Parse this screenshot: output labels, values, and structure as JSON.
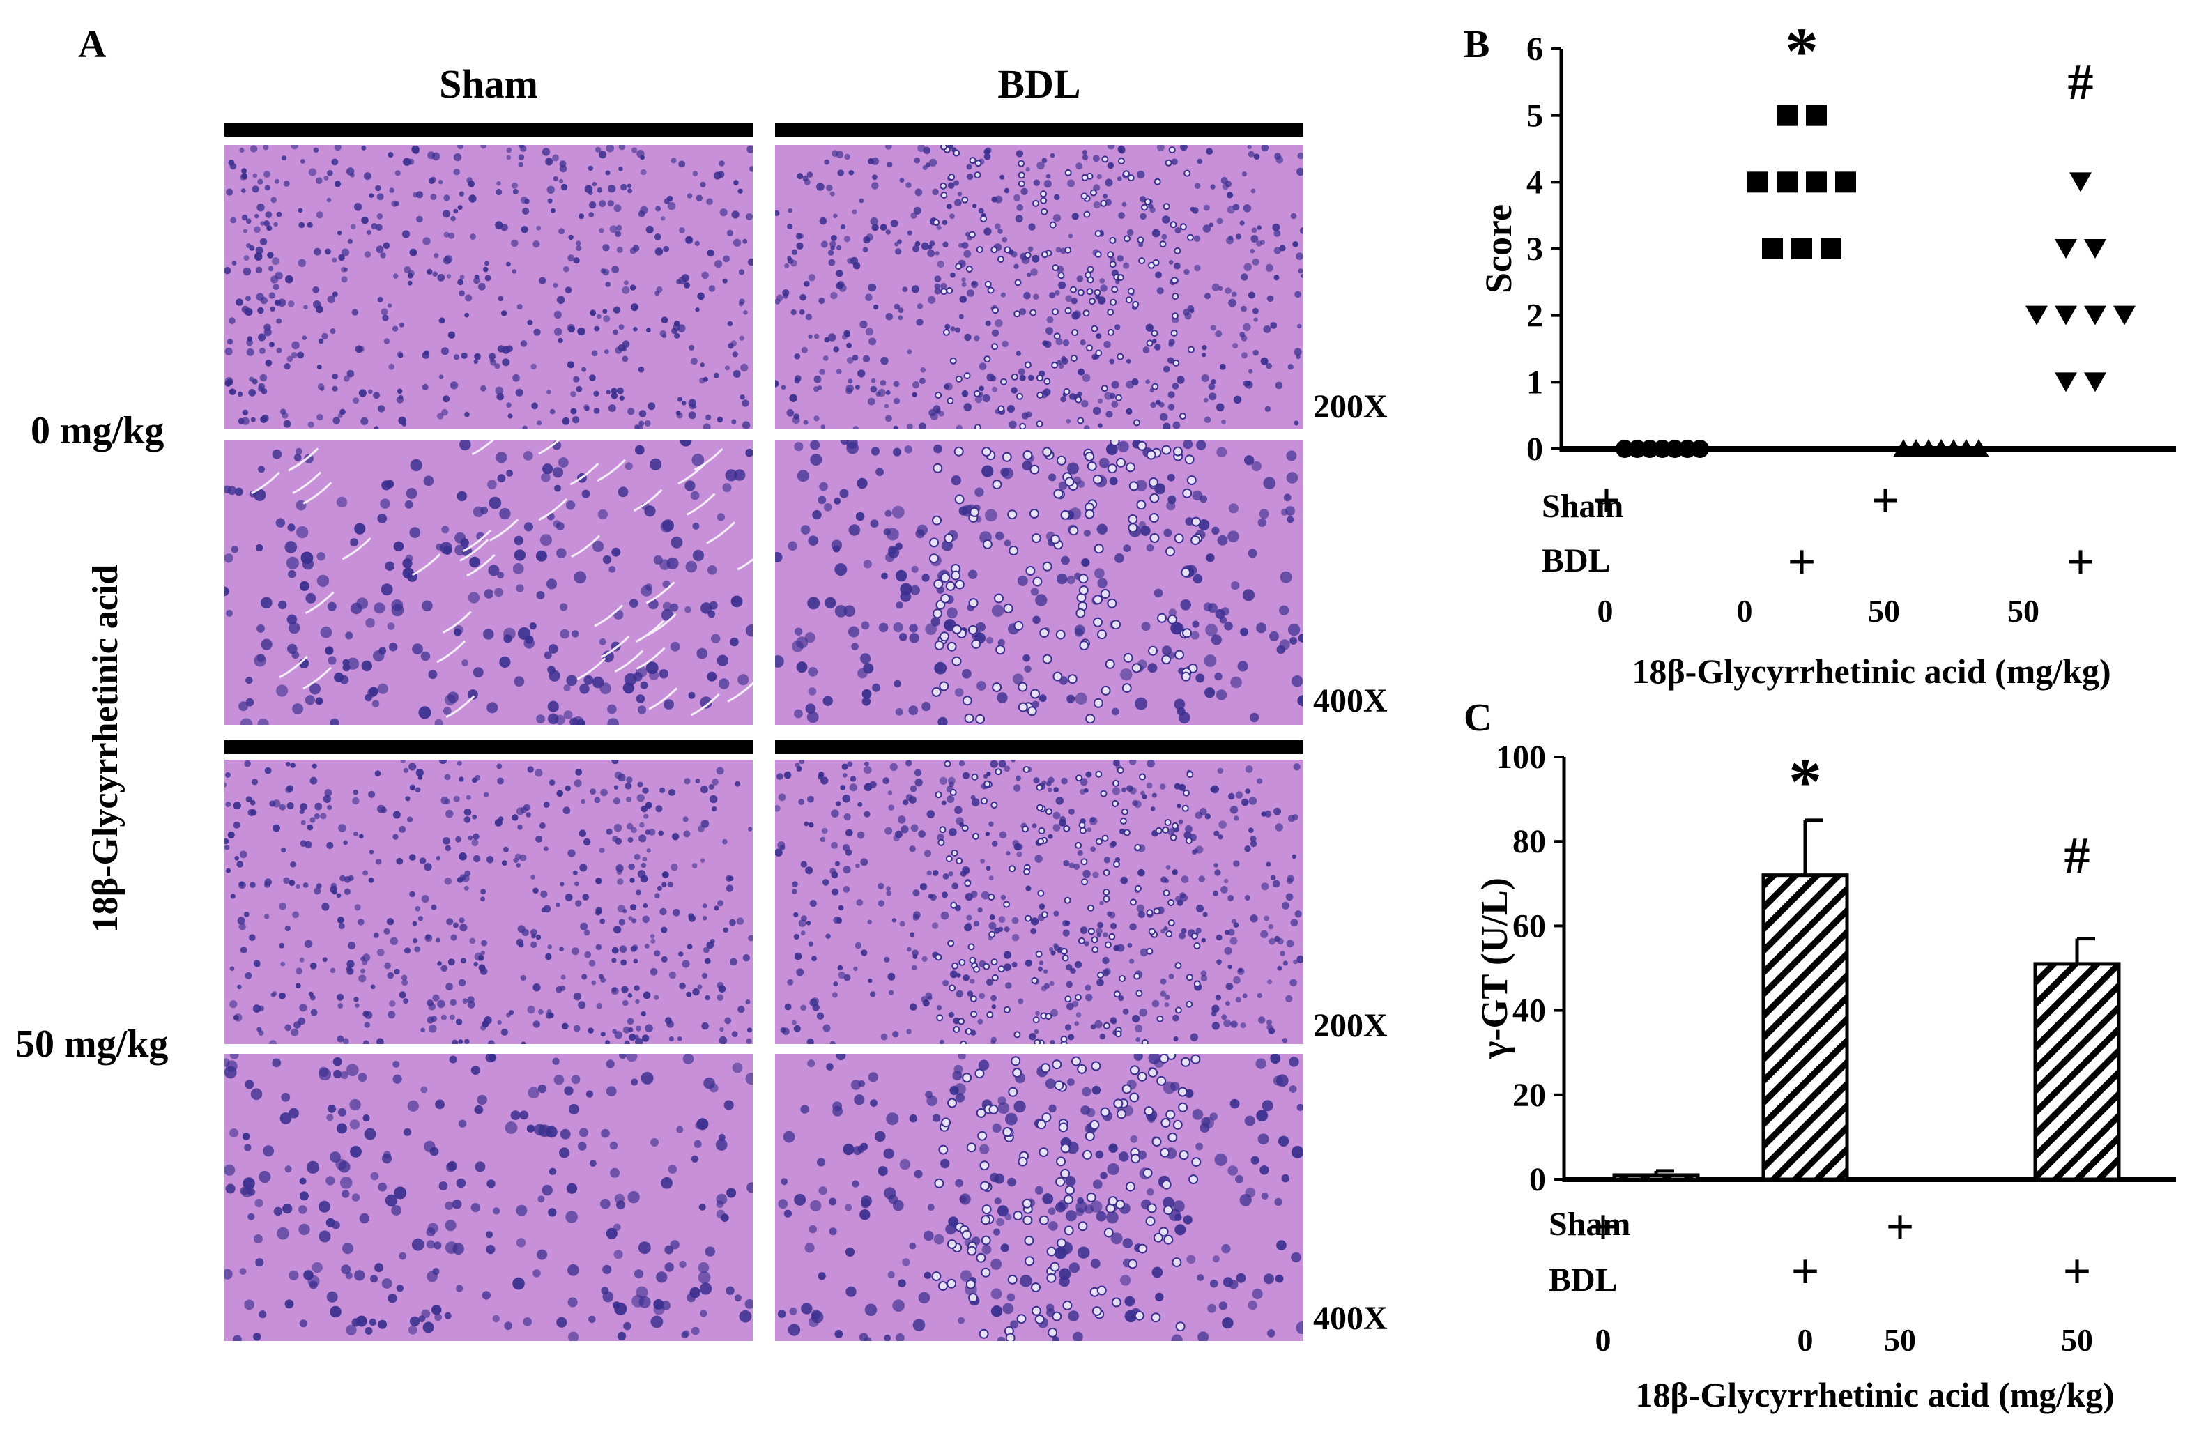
{
  "panel_a": {
    "letter": "A",
    "col_sham": "Sham",
    "col_bdl": "BDL",
    "dose_0": "0 mg/kg",
    "dose_50": "50 mg/kg",
    "compound": "18β-Glycyrrhetinic acid",
    "mag_200": "200X",
    "mag_400": "400X",
    "colors": {
      "tissue": "#b07cc6",
      "nuclei": "#3a2f8f",
      "background": "#c890d8"
    }
  },
  "chart_data": [
    {
      "panel": "B",
      "type": "scatter",
      "ylabel": "Score",
      "xlabel": "18β-Glycyrrhetinic acid (mg/kg)",
      "ylim": [
        0,
        6
      ],
      "yticks": [
        "0",
        "1",
        "2",
        "3",
        "4",
        "5",
        "6"
      ],
      "groups": [
        {
          "sham": "+",
          "bdl": "",
          "dose": "0",
          "marker": "circle",
          "values": [
            0,
            0,
            0,
            0,
            0,
            0,
            0
          ]
        },
        {
          "sham": "",
          "bdl": "+",
          "dose": "0",
          "marker": "square",
          "values": [
            5,
            5,
            4,
            4,
            4,
            4,
            3,
            3,
            3
          ]
        },
        {
          "sham": "+",
          "bdl": "",
          "dose": "50",
          "marker": "triangle-up",
          "values": [
            0,
            0,
            0,
            0,
            0,
            0,
            0
          ]
        },
        {
          "sham": "",
          "bdl": "+",
          "dose": "50",
          "marker": "triangle-down",
          "values": [
            4,
            3,
            3,
            2,
            2,
            2,
            2,
            1,
            1
          ]
        }
      ],
      "annotations": [
        "",
        "*",
        "",
        "#"
      ],
      "row_labels": {
        "sham": "Sham",
        "bdl": "BDL"
      },
      "grid": false
    },
    {
      "panel": "C",
      "type": "bar",
      "ylabel": "γ-GT (U/L)",
      "xlabel": "18β-Glycyrrhetinic acid (mg/kg)",
      "ylim": [
        0,
        100
      ],
      "yticks": [
        "0",
        "20",
        "40",
        "60",
        "80",
        "100"
      ],
      "groups": [
        {
          "sham": "+",
          "bdl": "",
          "dose": "0",
          "value": 1,
          "error": 1
        },
        {
          "sham": "",
          "bdl": "+",
          "dose": "0",
          "value": 72,
          "error": 13
        },
        {
          "sham": "+",
          "bdl": "",
          "dose": "50",
          "value": 0,
          "error": 0
        },
        {
          "sham": "",
          "bdl": "+",
          "dose": "50",
          "value": 51,
          "error": 6
        }
      ],
      "annotations": [
        "",
        "*",
        "",
        "#"
      ],
      "row_labels": {
        "sham": "Sham",
        "bdl": "BDL"
      },
      "bar_fill": "diagonal-hatch",
      "grid": false
    }
  ]
}
